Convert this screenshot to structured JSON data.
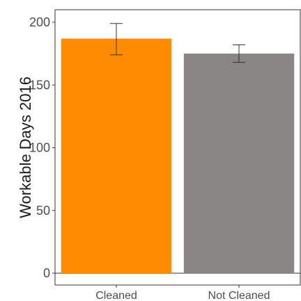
{
  "chart_data": {
    "type": "bar",
    "categories": [
      "Cleaned",
      "Not Cleaned"
    ],
    "values": [
      187,
      175
    ],
    "error_bars": [
      {
        "low": 174,
        "high": 199
      },
      {
        "low": 168,
        "high": 182
      }
    ],
    "colors": [
      "#ff8c00",
      "#898685"
    ],
    "title": "",
    "xlabel": "",
    "ylabel": "Workable Days 2016",
    "ylim": [
      0,
      200
    ],
    "yticks": [
      "0",
      "50",
      "100",
      "150",
      "200"
    ],
    "grid": false,
    "legend": "none"
  }
}
